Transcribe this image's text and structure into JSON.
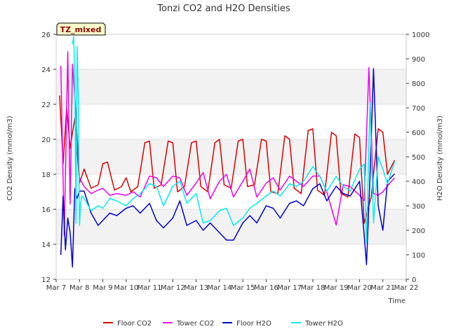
{
  "chart_data": {
    "type": "line",
    "title": "Tonzi CO2 and H2O Densities",
    "xlabel": "Time",
    "ylabel_left": "CO2 Density (mmol/m3)",
    "ylabel_right": "H2O Density (mmol/m3)",
    "x_ticks": [
      "Mar 7",
      "Mar 8",
      "Mar 9",
      "Mar 10",
      "Mar 11",
      "Mar 12",
      "Mar 13",
      "Mar 14",
      "Mar 15",
      "Mar 16",
      "Mar 17",
      "Mar 18",
      "Mar 19",
      "Mar 20",
      "Mar 21",
      "Mar 22"
    ],
    "xlim": [
      7,
      22
    ],
    "ylim_left": [
      12,
      26
    ],
    "ylim_right": [
      0,
      1000
    ],
    "y_ticks_left": [
      "12",
      "14",
      "16",
      "18",
      "20",
      "22",
      "24",
      "26"
    ],
    "y_ticks_right": [
      "0",
      "100",
      "200",
      "300",
      "400",
      "500",
      "600",
      "700",
      "800",
      "900",
      "1000"
    ],
    "badge": "TZ_mixed",
    "series": [
      {
        "name": "Floor CO2",
        "axis": "left",
        "color": "#dd0000",
        "x": [
          7.15,
          7.3,
          7.45,
          7.6,
          7.8,
          8.0,
          8.2,
          8.5,
          8.8,
          9.0,
          9.2,
          9.5,
          9.8,
          10.0,
          10.2,
          10.5,
          10.8,
          11.0,
          11.2,
          11.5,
          11.8,
          12.0,
          12.2,
          12.5,
          12.8,
          13.0,
          13.2,
          13.5,
          13.8,
          14.0,
          14.2,
          14.5,
          14.8,
          15.0,
          15.2,
          15.5,
          15.8,
          16.0,
          16.2,
          16.5,
          16.8,
          17.0,
          17.2,
          17.5,
          17.8,
          18.0,
          18.2,
          18.5,
          18.8,
          19.0,
          19.2,
          19.5,
          19.8,
          20.0,
          20.2,
          20.5,
          20.8,
          21.0,
          21.2,
          21.5
        ],
        "values": [
          22.5,
          18.6,
          21.8,
          19.5,
          21.2,
          17.5,
          18.3,
          17.2,
          17.4,
          18.6,
          18.7,
          17.1,
          17.3,
          17.8,
          17.0,
          17.3,
          19.8,
          19.9,
          17.2,
          17.4,
          19.9,
          19.8,
          17.0,
          17.3,
          19.8,
          19.9,
          17.3,
          17.0,
          19.8,
          20.0,
          17.4,
          17.2,
          19.9,
          20.0,
          17.3,
          17.4,
          20.0,
          19.9,
          17.0,
          16.9,
          20.2,
          20.0,
          17.2,
          16.9,
          20.5,
          20.6,
          17.1,
          16.8,
          20.4,
          20.2,
          16.9,
          16.7,
          20.3,
          20.1,
          15.2,
          16.7,
          20.6,
          20.4,
          18.0,
          18.8
        ]
      },
      {
        "name": "Tower CO2",
        "axis": "left",
        "color": "#ee00ee",
        "x": [
          7.2,
          7.35,
          7.5,
          7.6,
          7.7,
          7.8,
          8.0,
          8.2,
          8.5,
          8.8,
          9.0,
          9.3,
          9.6,
          10.0,
          10.3,
          10.6,
          11.0,
          11.3,
          11.6,
          12.0,
          12.3,
          12.6,
          13.0,
          13.3,
          13.6,
          14.0,
          14.3,
          14.6,
          15.0,
          15.3,
          15.6,
          16.0,
          16.3,
          16.6,
          17.0,
          17.3,
          17.6,
          18.0,
          18.3,
          18.6,
          19.0,
          19.3,
          19.6,
          20.0,
          20.2,
          20.4,
          20.6,
          20.8,
          21.0,
          21.3,
          21.5
        ],
        "values": [
          24.2,
          14.5,
          25.0,
          16.3,
          24.3,
          22.5,
          17.8,
          17.3,
          16.9,
          17.1,
          17.2,
          16.8,
          16.9,
          16.8,
          17.0,
          16.7,
          17.9,
          17.8,
          17.3,
          17.9,
          17.8,
          16.8,
          17.5,
          18.1,
          16.6,
          17.6,
          18.0,
          16.7,
          17.6,
          18.3,
          16.7,
          17.5,
          17.8,
          17.1,
          17.9,
          17.6,
          17.3,
          17.9,
          17.9,
          17.0,
          15.1,
          17.4,
          17.3,
          16.8,
          16.5,
          24.1,
          16.9,
          16.8,
          17.0,
          17.5,
          17.8
        ]
      },
      {
        "name": "Floor H2O",
        "axis": "right",
        "color": "#0000cc",
        "x": [
          7.2,
          7.3,
          7.4,
          7.5,
          7.6,
          7.7,
          7.8,
          7.9,
          8.0,
          8.2,
          8.5,
          8.8,
          9.0,
          9.3,
          9.6,
          10.0,
          10.3,
          10.6,
          11.0,
          11.3,
          11.6,
          12.0,
          12.3,
          12.6,
          13.0,
          13.3,
          13.6,
          14.0,
          14.3,
          14.6,
          15.0,
          15.3,
          15.6,
          16.0,
          16.3,
          16.6,
          17.0,
          17.3,
          17.6,
          18.0,
          18.3,
          18.6,
          19.0,
          19.3,
          19.6,
          20.0,
          20.2,
          20.3,
          20.45,
          20.6,
          20.8,
          21.0,
          21.2,
          21.5
        ],
        "values": [
          100,
          340,
          120,
          250,
          190,
          50,
          370,
          330,
          360,
          360,
          270,
          220,
          240,
          270,
          260,
          290,
          300,
          270,
          310,
          240,
          210,
          250,
          320,
          220,
          240,
          200,
          230,
          190,
          160,
          160,
          230,
          260,
          230,
          300,
          290,
          250,
          310,
          320,
          300,
          370,
          390,
          320,
          380,
          350,
          340,
          400,
          180,
          60,
          420,
          860,
          300,
          200,
          400,
          430
        ]
      },
      {
        "name": "Tower H2O",
        "axis": "right",
        "color": "#00eeee",
        "x": [
          7.7,
          7.75,
          7.8,
          7.85,
          7.9,
          7.95,
          8.0,
          8.05,
          8.1,
          8.2,
          8.5,
          8.8,
          9.0,
          9.3,
          9.6,
          10.0,
          10.3,
          10.6,
          11.0,
          11.3,
          11.6,
          12.0,
          12.3,
          12.6,
          13.0,
          13.3,
          13.6,
          14.0,
          14.3,
          14.6,
          15.0,
          15.3,
          15.6,
          16.0,
          16.3,
          16.6,
          17.0,
          17.3,
          17.6,
          18.0,
          18.3,
          18.6,
          19.0,
          19.3,
          19.6,
          20.0,
          20.2,
          20.3,
          20.45,
          20.6,
          20.8,
          21.0,
          21.2,
          21.5
        ],
        "values": [
          960,
          990,
          820,
          230,
          950,
          750,
          220,
          310,
          340,
          330,
          280,
          300,
          290,
          330,
          320,
          300,
          330,
          350,
          390,
          380,
          300,
          380,
          400,
          310,
          350,
          230,
          240,
          280,
          290,
          220,
          250,
          290,
          310,
          340,
          360,
          340,
          390,
          380,
          400,
          460,
          420,
          360,
          420,
          380,
          360,
          450,
          470,
          150,
          720,
          230,
          500,
          450,
          390,
          480
        ]
      }
    ]
  }
}
